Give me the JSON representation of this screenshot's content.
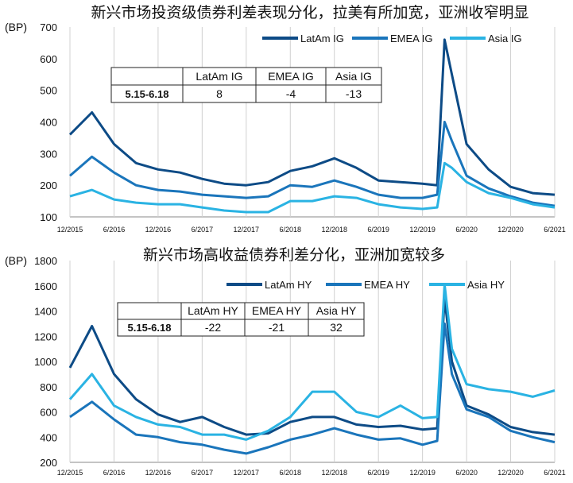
{
  "chart_data": [
    {
      "type": "line",
      "title": "新兴市场投资级债券利差表现分化，拉美有所加宽，亚洲收窄明显",
      "ylabel": "(BP)",
      "ylim": [
        100,
        700
      ],
      "yticks": [
        "100",
        "200",
        "300",
        "400",
        "500",
        "600",
        "700"
      ],
      "xticks": [
        "12/2015",
        "6/2016",
        "12/2016",
        "6/2017",
        "12/2017",
        "6/2018",
        "12/2018",
        "6/2019",
        "12/2019",
        "6/2020",
        "12/2020",
        "6/2021"
      ],
      "legend_position": "top-right",
      "grid": "vertical",
      "x": [
        "12/2015",
        "3/2016",
        "6/2016",
        "9/2016",
        "12/2016",
        "3/2017",
        "6/2017",
        "9/2017",
        "12/2017",
        "3/2018",
        "6/2018",
        "9/2018",
        "12/2018",
        "3/2019",
        "6/2019",
        "9/2019",
        "12/2019",
        "2/2020",
        "3/2020",
        "4/2020",
        "6/2020",
        "9/2020",
        "12/2020",
        "3/2021",
        "6/2021"
      ],
      "series": [
        {
          "name": "LatAm IG",
          "color": "#0d4b86",
          "values": [
            360,
            430,
            330,
            270,
            250,
            240,
            220,
            205,
            200,
            210,
            245,
            260,
            285,
            255,
            215,
            210,
            205,
            200,
            660,
            550,
            330,
            250,
            195,
            175,
            170
          ]
        },
        {
          "name": "EMEA IG",
          "color": "#1a75bb",
          "values": [
            230,
            290,
            240,
            200,
            185,
            180,
            170,
            165,
            160,
            165,
            200,
            195,
            215,
            195,
            170,
            160,
            160,
            170,
            400,
            340,
            230,
            190,
            165,
            145,
            135
          ]
        },
        {
          "name": "Asia IG",
          "color": "#2ab3e3",
          "values": [
            165,
            185,
            155,
            145,
            140,
            140,
            130,
            120,
            115,
            115,
            150,
            150,
            165,
            160,
            140,
            130,
            125,
            130,
            270,
            255,
            210,
            175,
            160,
            140,
            130
          ]
        }
      ],
      "table": {
        "row_label": "5.15-6.18",
        "columns": [
          "LatAm IG",
          "EMEA IG",
          "Asia IG"
        ],
        "values": [
          "8",
          "-4",
          "-13"
        ]
      }
    },
    {
      "type": "line",
      "title": "新兴市场高收益债券利差分化，亚洲加宽较多",
      "ylabel": "(BP)",
      "ylim": [
        200,
        1800
      ],
      "yticks": [
        "200",
        "400",
        "600",
        "800",
        "1000",
        "1200",
        "1400",
        "1600",
        "1800"
      ],
      "xticks": [
        "12/2015",
        "6/2016",
        "12/2016",
        "6/2017",
        "12/2017",
        "6/2018",
        "12/2018",
        "6/2019",
        "12/2019",
        "6/2020",
        "12/2020",
        "6/2021"
      ],
      "legend_position": "top-right",
      "grid": "vertical",
      "x": [
        "12/2015",
        "3/2016",
        "6/2016",
        "9/2016",
        "12/2016",
        "3/2017",
        "6/2017",
        "9/2017",
        "12/2017",
        "3/2018",
        "6/2018",
        "9/2018",
        "12/2018",
        "3/2019",
        "6/2019",
        "9/2019",
        "12/2019",
        "2/2020",
        "3/2020",
        "4/2020",
        "6/2020",
        "9/2020",
        "12/2020",
        "3/2021",
        "6/2021"
      ],
      "series": [
        {
          "name": "LatAm HY",
          "color": "#0d4b86",
          "values": [
            950,
            1280,
            900,
            700,
            580,
            520,
            560,
            480,
            420,
            430,
            520,
            560,
            560,
            500,
            480,
            490,
            460,
            470,
            1500,
            1000,
            650,
            580,
            480,
            440,
            420
          ]
        },
        {
          "name": "EMEA HY",
          "color": "#1a75bb",
          "values": [
            560,
            680,
            540,
            420,
            400,
            360,
            340,
            300,
            270,
            320,
            380,
            420,
            470,
            420,
            380,
            390,
            340,
            370,
            1300,
            900,
            620,
            560,
            450,
            400,
            360
          ]
        },
        {
          "name": "Asia HY",
          "color": "#2ab3e3",
          "values": [
            700,
            900,
            650,
            560,
            500,
            480,
            420,
            420,
            380,
            450,
            560,
            760,
            760,
            600,
            560,
            650,
            550,
            560,
            1610,
            1100,
            820,
            780,
            760,
            720,
            770
          ]
        }
      ],
      "table": {
        "row_label": "5.15-6.18",
        "columns": [
          "LatAm HY",
          "EMEA HY",
          "Asia HY"
        ],
        "values": [
          "-22",
          "-21",
          "32"
        ]
      }
    }
  ]
}
